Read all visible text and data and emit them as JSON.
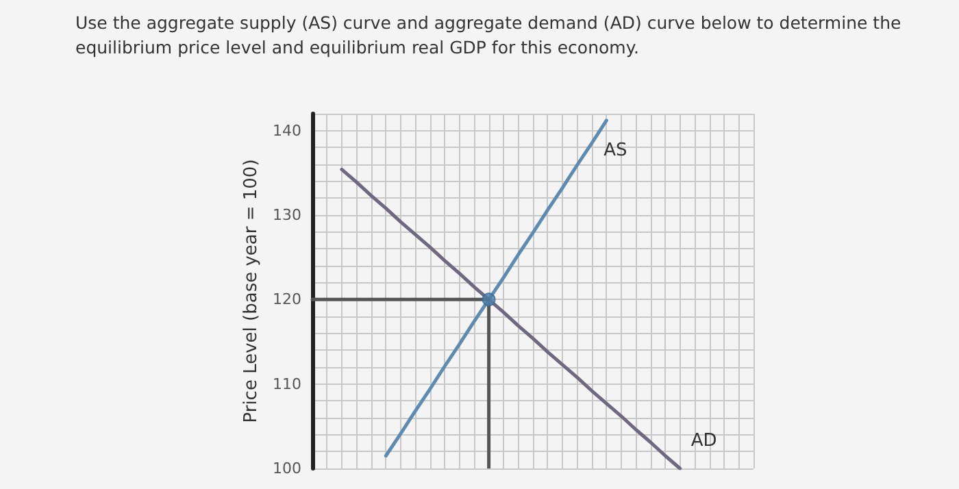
{
  "chart_data": {
    "type": "line",
    "title": "Use the aggregate supply (AS) curve and aggregate demand (AD) curve below to determine the equilibrium price level and equilibrium real GDP for this economy.",
    "ylabel": "Price Level (base year = 100)",
    "categories": [
      null,
      null,
      null,
      null,
      null,
      null,
      null,
      null,
      null,
      null,
      null,
      null,
      null,
      null,
      null,
      null,
      null,
      null,
      null,
      null,
      null,
      null,
      null,
      null,
      null,
      null,
      null,
      null,
      null,
      null,
      null
    ],
    "ylim": [
      100,
      142
    ],
    "yticks": [
      100,
      {
        "value": 102,
        "label": null
      },
      {
        "value": 104,
        "label": null
      },
      {
        "value": 106,
        "label": null
      },
      {
        "value": 108,
        "label": null
      },
      110,
      {
        "value": 112,
        "label": null
      },
      {
        "value": 114,
        "label": null
      },
      {
        "value": 116,
        "label": null
      },
      {
        "value": 118,
        "label": null
      },
      120,
      {
        "value": 122,
        "label": null
      },
      {
        "value": 124,
        "label": null
      },
      {
        "value": 126,
        "label": null
      },
      {
        "value": 128,
        "label": null
      },
      130,
      {
        "value": 132,
        "label": null
      },
      {
        "value": 134,
        "label": null
      },
      {
        "value": 136,
        "label": null
      },
      {
        "value": 138,
        "label": null
      },
      140,
      {
        "value": 142,
        "label": null
      }
    ],
    "grid": true,
    "marker": "none",
    "line_style": "solid",
    "series": [
      {
        "name": "AS",
        "color": "#5f8bb0",
        "values": [
          null,
          null,
          null,
          null,
          null,
          101.5,
          104.1,
          106.8,
          109.4,
          112.1,
          114.7,
          117.4,
          120,
          122.6,
          125.3,
          127.9,
          130.6,
          133.2,
          135.9,
          138.5,
          141.2,
          null,
          null,
          null,
          null,
          null,
          null,
          null,
          null,
          null,
          null
        ]
      },
      {
        "name": "AD",
        "color": "#6e6880",
        "values": [
          null,
          null,
          135.4,
          133.9,
          132.3,
          130.8,
          129.2,
          127.7,
          126.2,
          124.6,
          123.1,
          121.5,
          120,
          118.5,
          116.9,
          115.4,
          113.8,
          112.3,
          110.8,
          109.2,
          107.7,
          106.2,
          104.6,
          103.1,
          101.5,
          100,
          null,
          null,
          null,
          null,
          null
        ]
      },
      {
        "color": "#555555",
        "values": [
          120,
          120,
          120,
          120,
          120,
          120,
          120,
          120,
          120,
          120,
          120,
          120,
          120,
          null,
          null,
          null,
          null,
          null,
          null,
          null,
          null,
          null,
          null,
          null,
          null,
          null,
          null,
          null,
          null,
          null,
          null
        ]
      },
      {
        "type": "scatter",
        "marker": "circle",
        "color": "#4f80aa",
        "values": [
          null,
          null,
          null,
          null,
          null,
          null,
          null,
          null,
          null,
          null,
          null,
          null,
          120,
          null,
          null,
          null,
          null,
          null,
          null,
          null,
          null,
          null,
          null,
          null,
          null,
          null,
          null,
          null,
          null,
          null,
          null
        ],
        "errors": [
          null,
          null,
          null,
          null,
          null,
          null,
          null,
          null,
          null,
          null,
          null,
          null,
          [
            100,
            120
          ],
          null,
          null,
          null,
          null,
          null,
          null,
          null,
          null,
          null,
          null,
          null,
          null,
          null,
          null,
          null,
          null,
          null,
          null
        ]
      }
    ]
  }
}
